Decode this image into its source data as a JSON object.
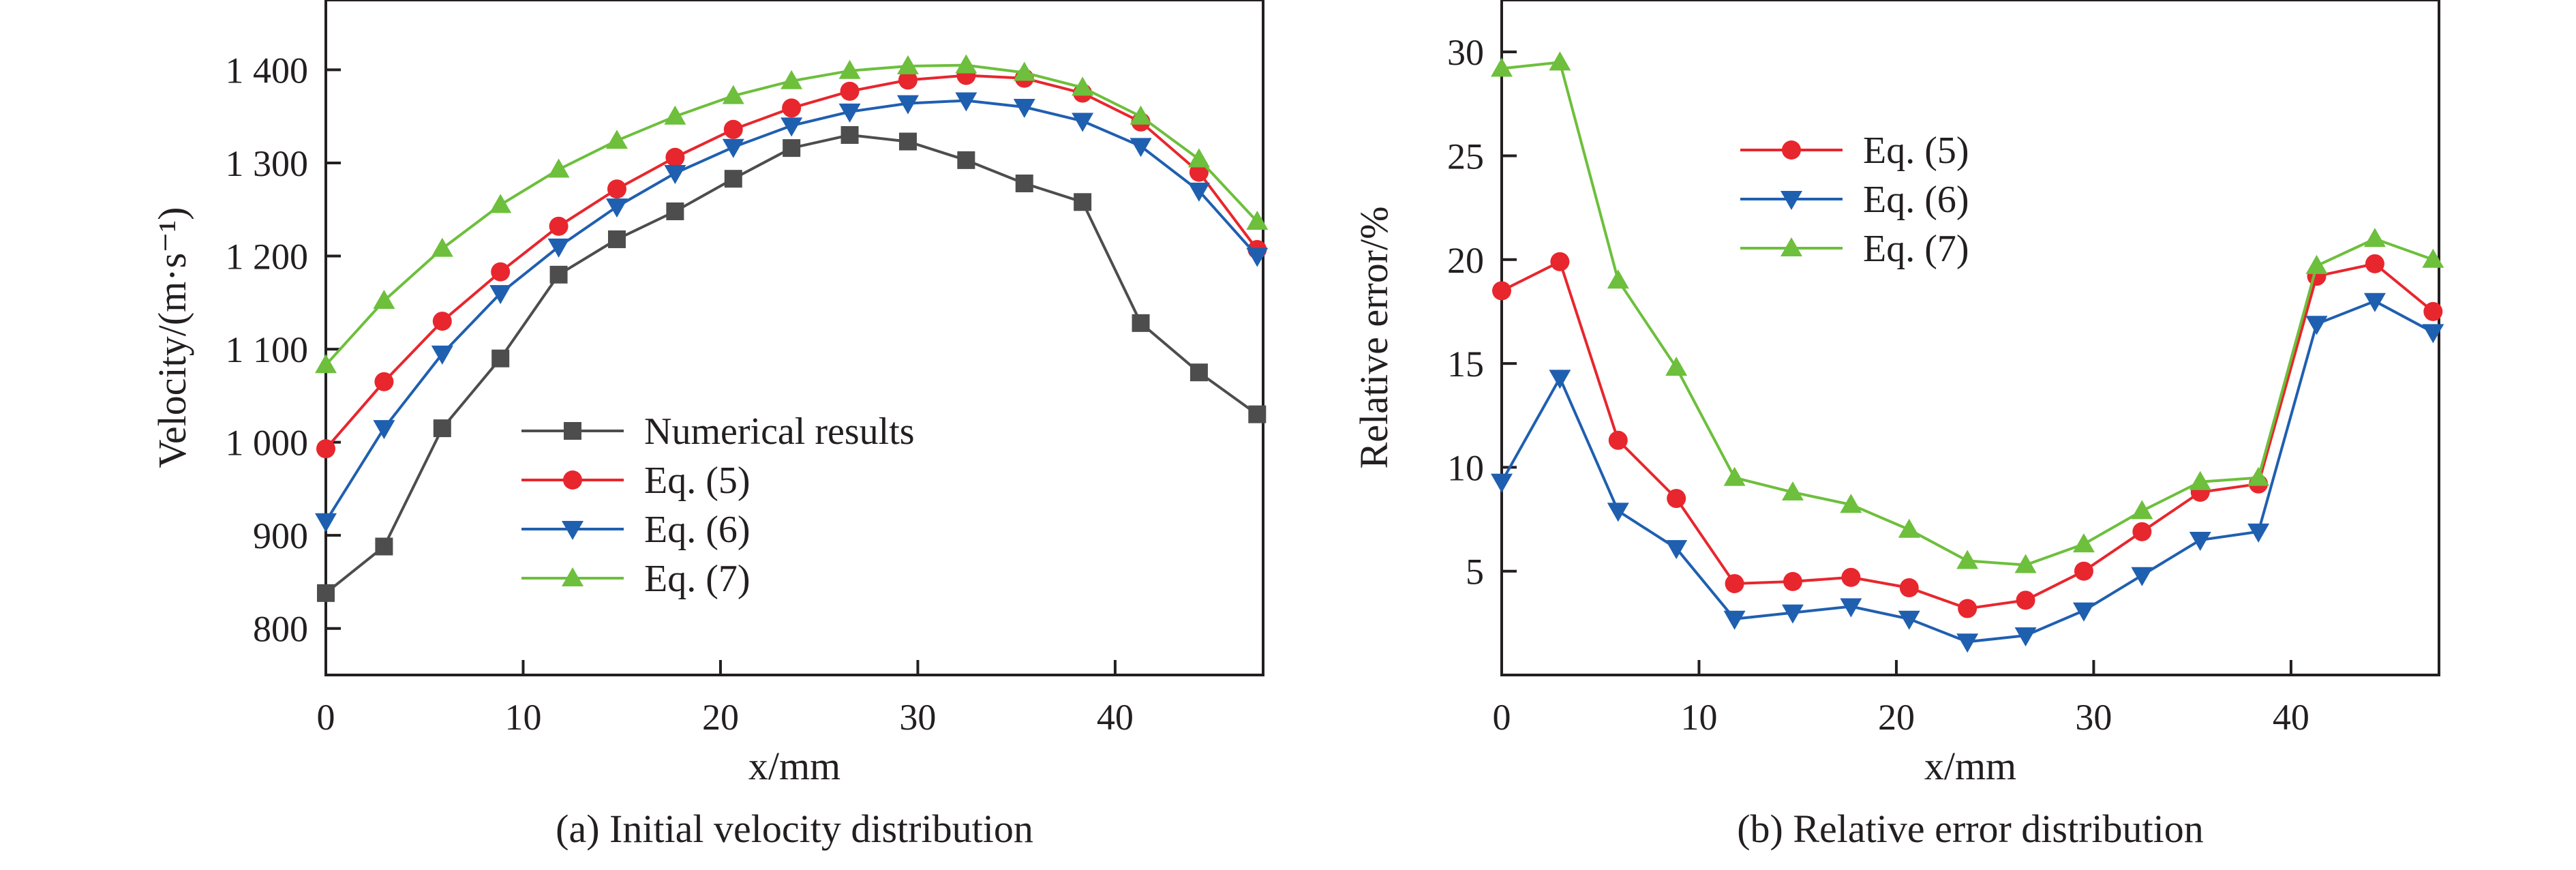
{
  "chart_data": [
    {
      "type": "line",
      "title": "(a) Initial velocity distribution",
      "xlabel": "x/mm",
      "ylabel": "Velocity/(m·s⁻¹)",
      "xlim": [
        0,
        47.5
      ],
      "ylim": [
        750,
        1475
      ],
      "xticks": [
        0,
        10,
        20,
        30,
        40
      ],
      "yticks": [
        800,
        900,
        1000,
        1100,
        1200,
        1300,
        1400
      ],
      "ytick_labels": [
        "800",
        "900",
        "1 000",
        "1 100",
        "1 200",
        "1 300",
        "1 400"
      ],
      "grid": false,
      "legend_position": "bottom-center",
      "x": [
        0,
        2.95,
        5.9,
        8.85,
        11.8,
        14.75,
        17.7,
        20.65,
        23.6,
        26.55,
        29.5,
        32.45,
        35.4,
        38.35,
        41.3,
        44.25,
        47.2
      ],
      "series": [
        {
          "name": "Numerical results",
          "color": "#4d4d4d",
          "marker": "square",
          "values": [
            838,
            888,
            1015,
            1090,
            1180,
            1218,
            1248,
            1283,
            1316,
            1330,
            1323,
            1303,
            1278,
            1258,
            1128,
            1075,
            1030
          ]
        },
        {
          "name": "Eq. (5)",
          "color": "#e8262d",
          "marker": "circle",
          "values": [
            993,
            1065,
            1130,
            1183,
            1232,
            1272,
            1306,
            1336,
            1359,
            1377,
            1389,
            1394,
            1391,
            1375,
            1344,
            1290,
            1207
          ]
        },
        {
          "name": "Eq. (6)",
          "color": "#1f5fb0",
          "marker": "triangle-down",
          "values": [
            915,
            1015,
            1095,
            1160,
            1210,
            1253,
            1289,
            1317,
            1340,
            1355,
            1364,
            1367,
            1360,
            1345,
            1318,
            1270,
            1200
          ]
        },
        {
          "name": "Eq. (7)",
          "color": "#6dbf3c",
          "marker": "triangle-up",
          "values": [
            1083,
            1152,
            1208,
            1255,
            1293,
            1324,
            1350,
            1372,
            1388,
            1399,
            1404,
            1405,
            1397,
            1381,
            1350,
            1304,
            1237
          ]
        }
      ]
    },
    {
      "type": "line",
      "title": "(b) Relative error distribution",
      "xlabel": "x/mm",
      "ylabel": "Relative error/%",
      "xlim": [
        0,
        47.5
      ],
      "ylim": [
        0,
        32.5
      ],
      "xticks": [
        0,
        10,
        20,
        30,
        40
      ],
      "yticks": [
        5,
        10,
        15,
        20,
        25,
        30
      ],
      "ytick_labels": [
        "5",
        "10",
        "15",
        "20",
        "25",
        "30"
      ],
      "grid": false,
      "legend_position": "top-center",
      "x": [
        0,
        2.95,
        5.9,
        8.85,
        11.8,
        14.75,
        17.7,
        20.65,
        23.6,
        26.55,
        29.5,
        32.45,
        35.4,
        38.35,
        41.3,
        44.25,
        47.2
      ],
      "series": [
        {
          "name": "Eq. (5)",
          "color": "#e8262d",
          "marker": "circle",
          "values": [
            18.5,
            19.9,
            11.3,
            8.5,
            4.4,
            4.5,
            4.7,
            4.2,
            3.2,
            3.6,
            5.0,
            6.9,
            8.8,
            9.2,
            19.2,
            19.8,
            17.5
          ]
        },
        {
          "name": "Eq. (6)",
          "color": "#1f5fb0",
          "marker": "triangle-down",
          "values": [
            9.3,
            14.3,
            7.9,
            6.1,
            2.7,
            3.0,
            3.3,
            2.7,
            1.6,
            1.9,
            3.1,
            4.8,
            6.5,
            6.9,
            16.9,
            18.0,
            16.5
          ]
        },
        {
          "name": "Eq. (7)",
          "color": "#6dbf3c",
          "marker": "triangle-up",
          "values": [
            29.2,
            29.5,
            19.0,
            14.8,
            9.5,
            8.8,
            8.2,
            7.0,
            5.5,
            5.3,
            6.3,
            7.9,
            9.3,
            9.5,
            19.7,
            21.0,
            20.0
          ]
        }
      ]
    }
  ]
}
